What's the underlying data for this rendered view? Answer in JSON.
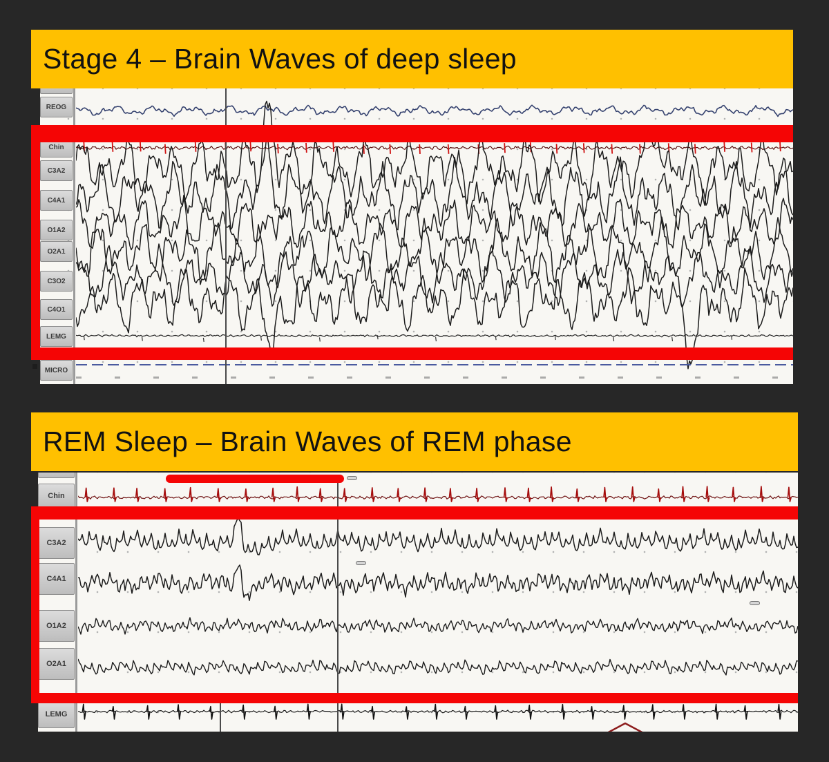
{
  "page": {
    "background_color": "#272727"
  },
  "colors": {
    "header_bg": "#FFC000",
    "header_text": "#121212",
    "annotation_red": "#F50505",
    "paper_bg": "#F8F7F3",
    "label_text": "#3B3B3B",
    "grid_dot": "#B3B3B3",
    "trace_black": "#1C1C1C",
    "trace_blue": "#35426F",
    "trace_dark_red": "#9E1010"
  },
  "panels": [
    {
      "title": "Stage 4 – Brain Waves of deep sleep",
      "channels": [
        "REOG",
        "Chin",
        "C3A2",
        "C4A1",
        "O1A2",
        "O2A1",
        "C3O2",
        "C4O1",
        "LEMG",
        "MICRO"
      ]
    },
    {
      "title": "REM Sleep – Brain Waves of REM phase",
      "channels": [
        "Chin",
        "C3A2",
        "C4A1",
        "O1A2",
        "O2A1",
        "LEMG"
      ]
    }
  ]
}
